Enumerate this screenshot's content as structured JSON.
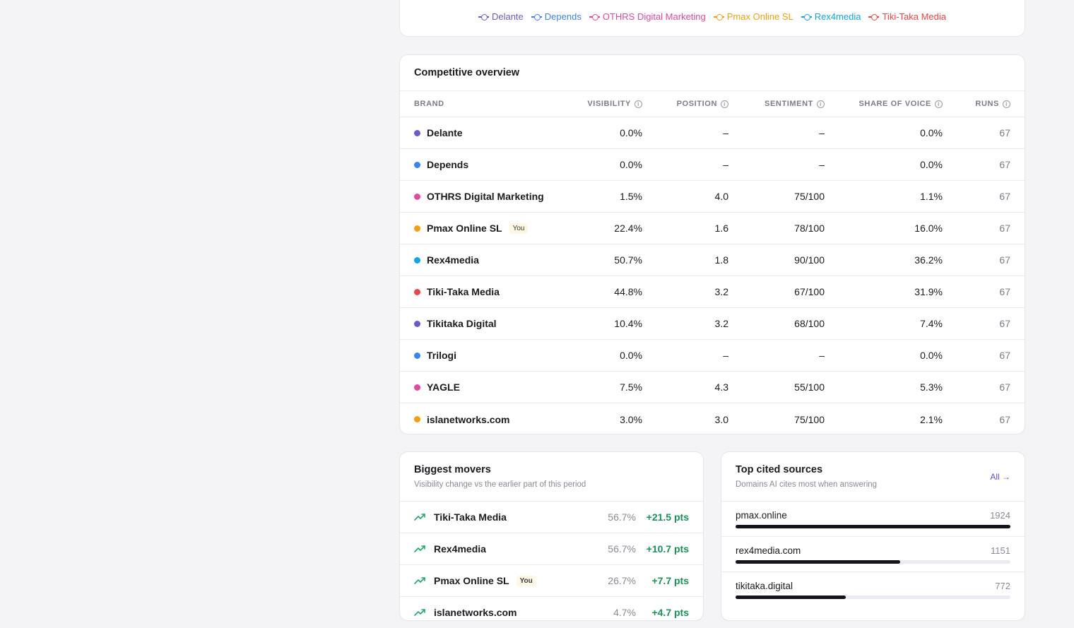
{
  "legend": [
    {
      "name": "Delante",
      "color": "#6b5bc8"
    },
    {
      "name": "Depends",
      "color": "#3b82f6"
    },
    {
      "name": "OTHRS Digital Marketing",
      "color": "#e5479b"
    },
    {
      "name": "Pmax Online SL",
      "color": "#f59e0b"
    },
    {
      "name": "Rex4media",
      "color": "#0ea5e9"
    },
    {
      "name": "Tiki-Taka Media",
      "color": "#ef4444"
    }
  ],
  "overview": {
    "title": "Competitive overview",
    "headers": {
      "brand": "BRAND",
      "visibility": "VISIBILITY",
      "position": "POSITION",
      "sentiment": "SENTIMENT",
      "share": "SHARE OF VOICE",
      "runs": "RUNS"
    },
    "info_icon": "info-icon",
    "rows": [
      {
        "brand": "Delante",
        "color": "#6b5bc8",
        "you": "",
        "visibility": "0.0%",
        "position": "–",
        "sentiment": "–",
        "share": "0.0%",
        "runs": "67"
      },
      {
        "brand": "Depends",
        "color": "#3b82f6",
        "you": "",
        "visibility": "0.0%",
        "position": "–",
        "sentiment": "–",
        "share": "0.0%",
        "runs": "67"
      },
      {
        "brand": "OTHRS Digital Marketing",
        "color": "#e5479b",
        "you": "",
        "visibility": "1.5%",
        "position": "4.0",
        "sentiment": "75/100",
        "share": "1.1%",
        "runs": "67"
      },
      {
        "brand": "Pmax Online SL",
        "color": "#f59e0b",
        "you": "You",
        "visibility": "22.4%",
        "position": "1.6",
        "sentiment": "78/100",
        "share": "16.0%",
        "runs": "67"
      },
      {
        "brand": "Rex4media",
        "color": "#0ea5e9",
        "you": "",
        "visibility": "50.7%",
        "position": "1.8",
        "sentiment": "90/100",
        "share": "36.2%",
        "runs": "67"
      },
      {
        "brand": "Tiki-Taka Media",
        "color": "#ef4444",
        "you": "",
        "visibility": "44.8%",
        "position": "3.2",
        "sentiment": "67/100",
        "share": "31.9%",
        "runs": "67"
      },
      {
        "brand": "Tikitaka Digital",
        "color": "#6b5bc8",
        "you": "",
        "visibility": "10.4%",
        "position": "3.2",
        "sentiment": "68/100",
        "share": "7.4%",
        "runs": "67"
      },
      {
        "brand": "Trilogi",
        "color": "#3b82f6",
        "you": "",
        "visibility": "0.0%",
        "position": "–",
        "sentiment": "–",
        "share": "0.0%",
        "runs": "67"
      },
      {
        "brand": "YAGLE",
        "color": "#e5479b",
        "you": "",
        "visibility": "7.5%",
        "position": "4.3",
        "sentiment": "55/100",
        "share": "5.3%",
        "runs": "67"
      },
      {
        "brand": "islanetworks.com",
        "color": "#f59e0b",
        "you": "",
        "visibility": "3.0%",
        "position": "3.0",
        "sentiment": "75/100",
        "share": "2.1%",
        "runs": "67"
      }
    ]
  },
  "movers": {
    "title": "Biggest movers",
    "subtitle": "Visibility change vs the earlier part of this period",
    "icon": "trending-up-icon",
    "rows": [
      {
        "name": "Tiki-Taka Media",
        "you": "",
        "value": "56.7%",
        "delta": "+21.5 pts"
      },
      {
        "name": "Rex4media",
        "you": "",
        "value": "56.7%",
        "delta": "+10.7 pts"
      },
      {
        "name": "Pmax Online SL",
        "you": "You",
        "value": "26.7%",
        "delta": "+7.7 pts"
      },
      {
        "name": "islanetworks.com",
        "you": "",
        "value": "4.7%",
        "delta": "+4.7 pts"
      }
    ]
  },
  "sources": {
    "title": "Top cited sources",
    "subtitle": "Domains AI cites most when answering",
    "all_link": "All →",
    "rows": [
      {
        "domain": "pmax.online",
        "count": "1924",
        "fraction": 1.0
      },
      {
        "domain": "rex4media.com",
        "count": "1151",
        "fraction": 0.598
      },
      {
        "domain": "tikitaka.digital",
        "count": "772",
        "fraction": 0.401
      }
    ]
  }
}
